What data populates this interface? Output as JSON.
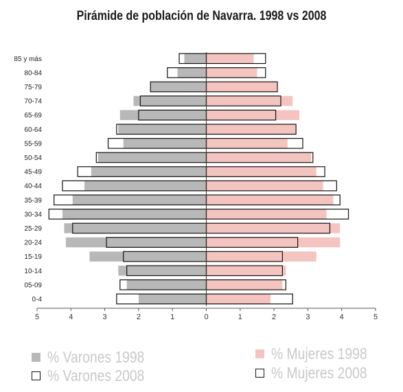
{
  "title": "Pirámide de población de Navarra. 1998 vs 2008",
  "colors": {
    "varones_1998": "#b8b8b8",
    "mujeres_1998": "#f3c4c0",
    "outline": "#111111",
    "legend_text": "#c9c9c9"
  },
  "legend": [
    {
      "key": "varones_1998",
      "label": "% Varones 1998",
      "style": "filled-grey"
    },
    {
      "key": "varones_2008",
      "label": "% Varones 2008",
      "style": "outline"
    },
    {
      "key": "mujeres_1998",
      "label": "% Mujeres 1998",
      "style": "filled-pink"
    },
    {
      "key": "mujeres_2008",
      "label": "% Mujeres 2008",
      "style": "outline"
    }
  ],
  "chart_data": {
    "type": "bar",
    "orientation": "horizontal-pyramid",
    "title": "Pirámide de población de Navarra. 1998 vs 2008",
    "categories": [
      "85 y más",
      "80-84",
      "75-79",
      "70-74",
      "65-69",
      "60-64",
      "55-59",
      "50-54",
      "45-49",
      "40-44",
      "35-39",
      "30-34",
      "25-29",
      "20-24",
      "15-19",
      "10-14",
      "05-09",
      "0-4"
    ],
    "series": [
      {
        "name": "% Varones 1998",
        "side": "left",
        "style": "filled",
        "values": [
          0.65,
          0.85,
          1.65,
          2.15,
          2.55,
          2.6,
          2.45,
          3.2,
          3.4,
          3.6,
          3.95,
          4.25,
          4.2,
          4.15,
          3.45,
          2.6,
          2.35,
          2.0
        ]
      },
      {
        "name": "% Varones 2008",
        "side": "left",
        "style": "outline",
        "values": [
          0.8,
          1.15,
          1.65,
          1.95,
          2.0,
          2.65,
          2.9,
          3.25,
          3.8,
          4.25,
          4.5,
          4.65,
          3.95,
          2.95,
          2.45,
          2.35,
          2.55,
          2.65
        ]
      },
      {
        "name": "% Mujeres 1998",
        "side": "right",
        "style": "filled",
        "values": [
          1.4,
          1.5,
          2.1,
          2.55,
          2.75,
          2.65,
          2.4,
          3.1,
          3.25,
          3.45,
          3.75,
          3.55,
          3.95,
          3.95,
          3.25,
          2.35,
          2.25,
          1.9
        ]
      },
      {
        "name": "% Mujeres 2008",
        "side": "right",
        "style": "outline",
        "values": [
          1.75,
          1.75,
          2.1,
          2.2,
          2.05,
          2.65,
          2.85,
          3.15,
          3.5,
          3.85,
          3.95,
          4.2,
          3.65,
          2.7,
          2.25,
          2.25,
          2.35,
          2.55
        ]
      }
    ],
    "xaxis": {
      "ticks": [
        5,
        4,
        3,
        2,
        1,
        0,
        1,
        2,
        3,
        4,
        5
      ],
      "range": [
        -5,
        5
      ]
    },
    "xlabel": "",
    "ylabel": "",
    "grid": false
  }
}
